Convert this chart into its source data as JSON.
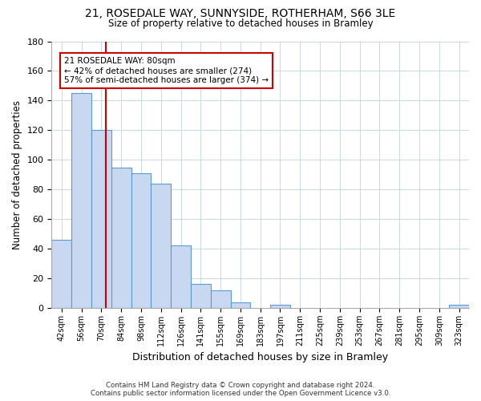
{
  "title1": "21, ROSEDALE WAY, SUNNYSIDE, ROTHERHAM, S66 3LE",
  "title2": "Size of property relative to detached houses in Bramley",
  "xlabel": "Distribution of detached houses by size in Bramley",
  "ylabel": "Number of detached properties",
  "bin_labels": [
    "42sqm",
    "56sqm",
    "70sqm",
    "84sqm",
    "98sqm",
    "112sqm",
    "126sqm",
    "141sqm",
    "155sqm",
    "169sqm",
    "183sqm",
    "197sqm",
    "211sqm",
    "225sqm",
    "239sqm",
    "253sqm",
    "267sqm",
    "281sqm",
    "295sqm",
    "309sqm",
    "323sqm"
  ],
  "bar_heights": [
    46,
    145,
    120,
    95,
    91,
    84,
    42,
    16,
    12,
    4,
    0,
    2,
    0,
    0,
    0,
    0,
    0,
    0,
    0,
    0,
    2
  ],
  "bar_color": "#c8d8f0",
  "bar_edge_color": "#5b9bd5",
  "vline_color": "#cc0000",
  "annotation_title": "21 ROSEDALE WAY: 80sqm",
  "annotation_line1": "← 42% of detached houses are smaller (274)",
  "annotation_line2": "57% of semi-detached houses are larger (374) →",
  "annotation_box_color": "#ffffff",
  "annotation_box_edge": "#cc0000",
  "ylim": [
    0,
    180
  ],
  "yticks": [
    0,
    20,
    40,
    60,
    80,
    100,
    120,
    140,
    160,
    180
  ],
  "footer_line1": "Contains HM Land Registry data © Crown copyright and database right 2024.",
  "footer_line2": "Contains public sector information licensed under the Open Government Licence v3.0.",
  "bg_color": "#ffffff",
  "grid_color": "#c8d8ec"
}
